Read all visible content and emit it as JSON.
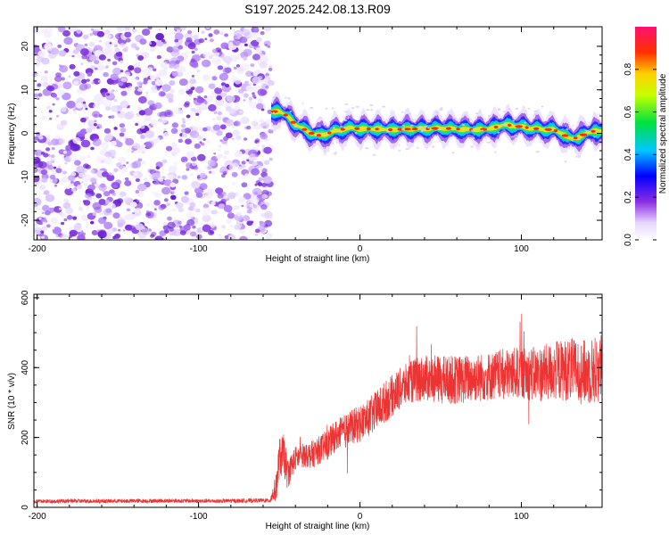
{
  "title": "S197.2025.242.08.13.R09",
  "chart_data": [
    {
      "type": "heatmap",
      "name": "spectrogram",
      "xlabel": "Height of straight line (km)",
      "ylabel": "Frequency (Hz)",
      "xlim": [
        -202,
        150
      ],
      "ylim": [
        -24.5,
        24.5
      ],
      "xticks": [
        -200,
        -100,
        0,
        100
      ],
      "yticks": [
        -20,
        -10,
        0,
        10,
        20
      ],
      "colorbar": {
        "label": "Normalized spectral amplitude",
        "range": [
          0,
          1
        ],
        "ticks": [
          0,
          0.2,
          0.4,
          0.6,
          0.8
        ],
        "tick_labels": [
          "0.0",
          "0.2",
          "0.4",
          "0.6",
          "0.8"
        ],
        "colormap": "hsv-rainbow"
      },
      "noise_region_x": [
        -202,
        -55
      ],
      "ridge": {
        "x": [
          -55,
          -50,
          -45,
          -40,
          -35,
          -30,
          -25,
          -20,
          -15,
          -10,
          -5,
          0,
          10,
          20,
          30,
          40,
          50,
          60,
          70,
          80,
          90,
          100,
          110,
          120,
          125,
          130,
          135,
          140,
          145,
          150
        ],
        "y": [
          5,
          5,
          4,
          2,
          1,
          0,
          -0.5,
          0,
          0.5,
          1,
          1.2,
          1,
          1,
          0.8,
          1,
          1,
          1.2,
          1,
          0.8,
          1,
          2,
          1.5,
          1,
          0.8,
          0,
          -1.2,
          -1,
          0,
          0.5,
          0.5
        ]
      }
    },
    {
      "type": "line",
      "name": "snr",
      "xlabel": "Height of straight line (km)",
      "ylabel": "SNR (10 * v/v)",
      "xlim": [
        -202,
        150
      ],
      "ylim": [
        0,
        610
      ],
      "xticks": [
        -200,
        -100,
        0,
        100
      ],
      "yticks": [
        0,
        200,
        400,
        600
      ],
      "color": "#ee3333",
      "series": [
        {
          "x": [
            -202,
            -180,
            -150,
            -120,
            -90,
            -60,
            -56,
            -52,
            -50,
            -47,
            -45,
            -40,
            -35,
            -30,
            -25,
            -20,
            -15,
            -10,
            -5,
            0,
            5,
            10,
            15,
            20,
            25,
            30,
            35,
            40,
            50,
            60,
            70,
            80,
            90,
            100,
            110,
            120,
            130,
            140,
            150
          ],
          "values": [
            17,
            18,
            18,
            19,
            18,
            20,
            19,
            55,
            140,
            150,
            95,
            140,
            150,
            150,
            165,
            180,
            205,
            215,
            230,
            240,
            255,
            275,
            300,
            320,
            340,
            355,
            365,
            370,
            365,
            365,
            370,
            375,
            380,
            385,
            380,
            390,
            395,
            385,
            400
          ],
          "noise_amp": [
            6,
            6,
            6,
            6,
            6,
            6,
            6,
            40,
            60,
            60,
            45,
            35,
            35,
            40,
            40,
            45,
            45,
            50,
            50,
            55,
            55,
            60,
            60,
            60,
            60,
            60,
            65,
            65,
            70,
            70,
            70,
            70,
            75,
            75,
            80,
            85,
            90,
            95,
            100
          ]
        }
      ]
    }
  ]
}
